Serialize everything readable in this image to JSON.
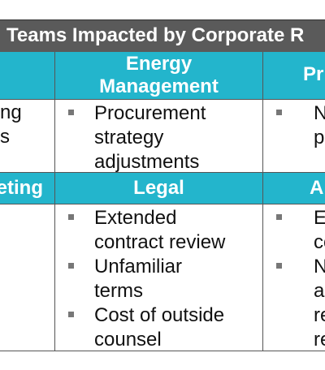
{
  "title": "Teams Impacted by Corporate R",
  "header_row_1": [
    "",
    "Energy Management",
    "Pr"
  ],
  "row_1_col_0_text": [
    "ng",
    "s"
  ],
  "row_1_col_1_bullets": [
    "Procurement strategy adjustments"
  ],
  "row_1_col_2_text": [
    "N",
    "p"
  ],
  "header_row_2": [
    "eting",
    "Legal",
    "A"
  ],
  "row_2_col_1_bullets": [
    "Extended contract review",
    "Unfamiliar terms",
    "Cost of outside counsel"
  ],
  "row_2_col_2_text": [
    "E",
    "co",
    "N",
    "a",
    "re",
    "re"
  ]
}
